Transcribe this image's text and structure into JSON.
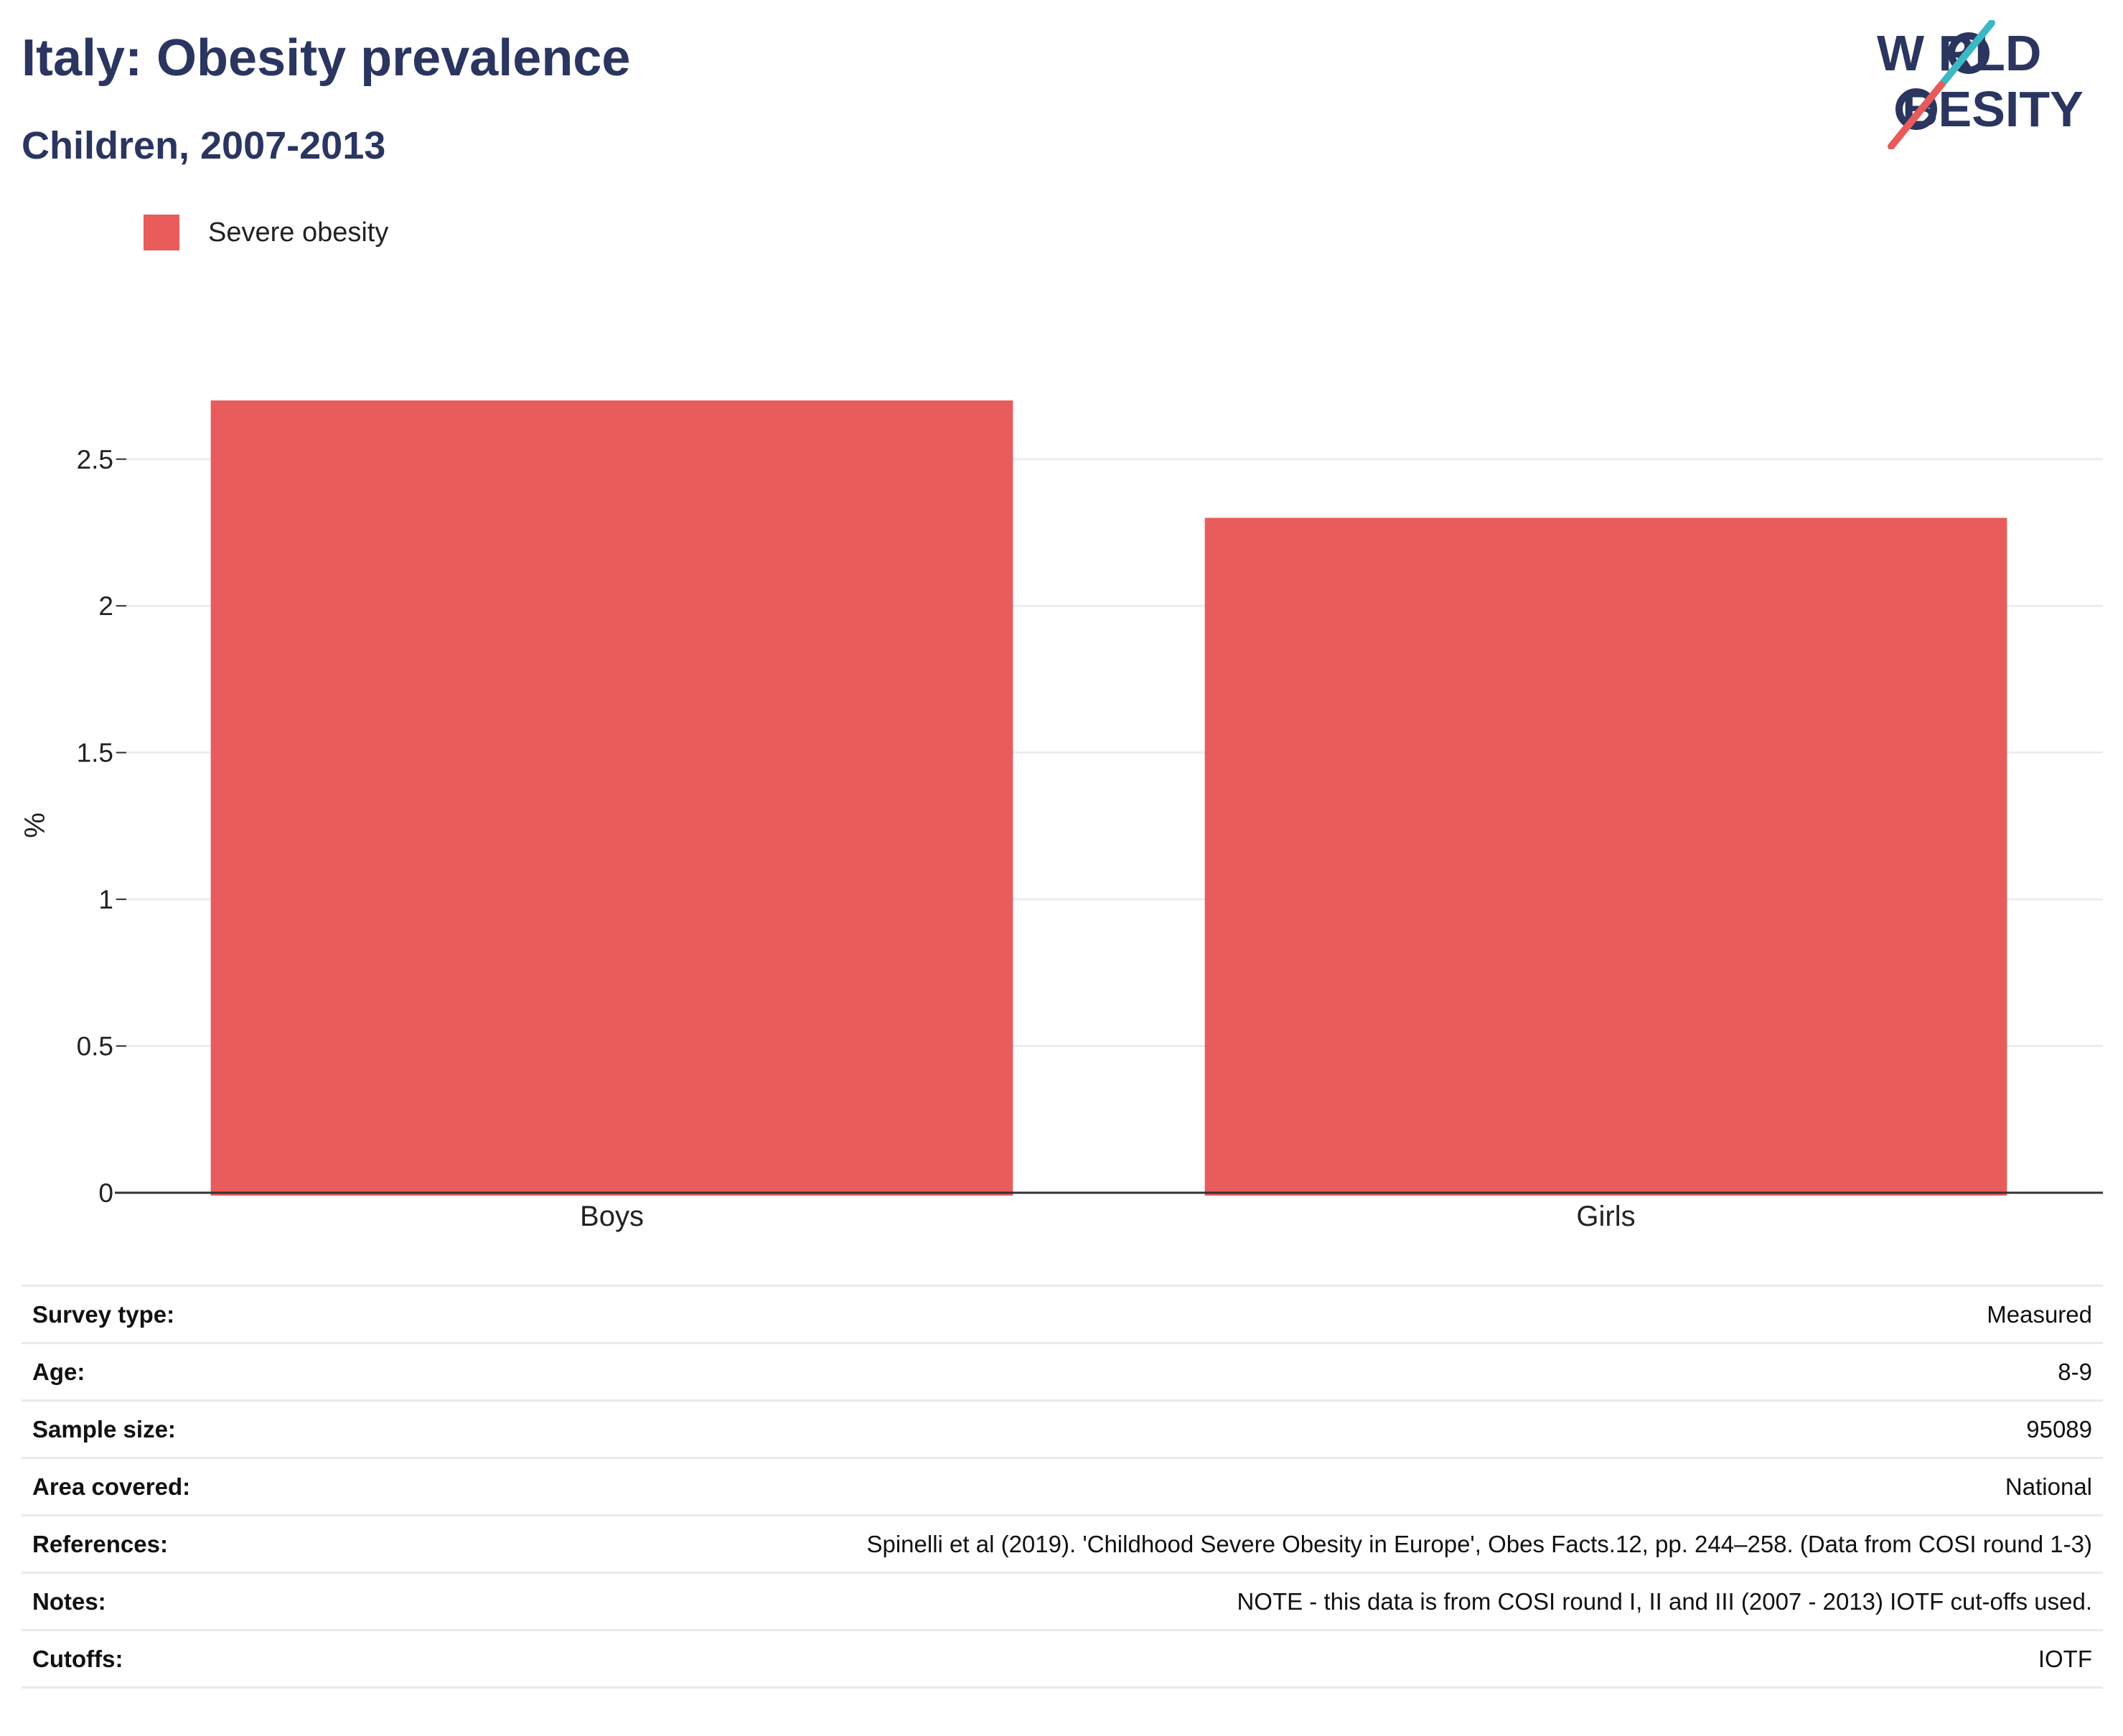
{
  "header": {
    "title": "Italy: Obesity prevalence",
    "subtitle": "Children, 2007-2013"
  },
  "logo": {
    "line1": "W RLD",
    "line2": "BESITY",
    "text": "WORLD OBESITY",
    "icon": "world-obesity-logo",
    "colors": {
      "text": "#2a3560",
      "slash_top": "#3bb8c4",
      "slash_bottom": "#e85b5b"
    }
  },
  "legend": {
    "items": [
      {
        "label": "Severe obesity",
        "color": "#e95c5c"
      }
    ]
  },
  "chart_data": {
    "type": "bar",
    "categories": [
      "Boys",
      "Girls"
    ],
    "series": [
      {
        "name": "Severe obesity",
        "values": [
          2.7,
          2.3
        ],
        "color": "#e95c5c"
      }
    ],
    "ylabel": "%",
    "xlabel": "",
    "ylim": [
      0,
      2.7
    ],
    "yticks": [
      0,
      0.5,
      1,
      1.5,
      2,
      2.5
    ],
    "ytick_labels": [
      "0",
      "0.5",
      "1",
      "1.5",
      "2",
      "2.5"
    ],
    "grid": true,
    "legend_position": "top-left"
  },
  "info": {
    "rows": [
      {
        "label": "Survey type:",
        "value": "Measured"
      },
      {
        "label": "Age:",
        "value": "8-9"
      },
      {
        "label": "Sample size:",
        "value": "95089"
      },
      {
        "label": "Area covered:",
        "value": "National"
      },
      {
        "label": "References:",
        "value": "Spinelli et al (2019). 'Childhood Severe Obesity in Europe', Obes Facts.12, pp. 244–258. (Data from COSI round 1-3)"
      },
      {
        "label": "Notes:",
        "value": "NOTE - this data is from COSI round I, II and III (2007 - 2013) IOTF cut-offs used."
      },
      {
        "label": "Cutoffs:",
        "value": "IOTF"
      }
    ]
  },
  "colors": {
    "title": "#2a3560",
    "bar": "#e95c5c",
    "grid": "#e9edf3",
    "axis": "#333333"
  }
}
